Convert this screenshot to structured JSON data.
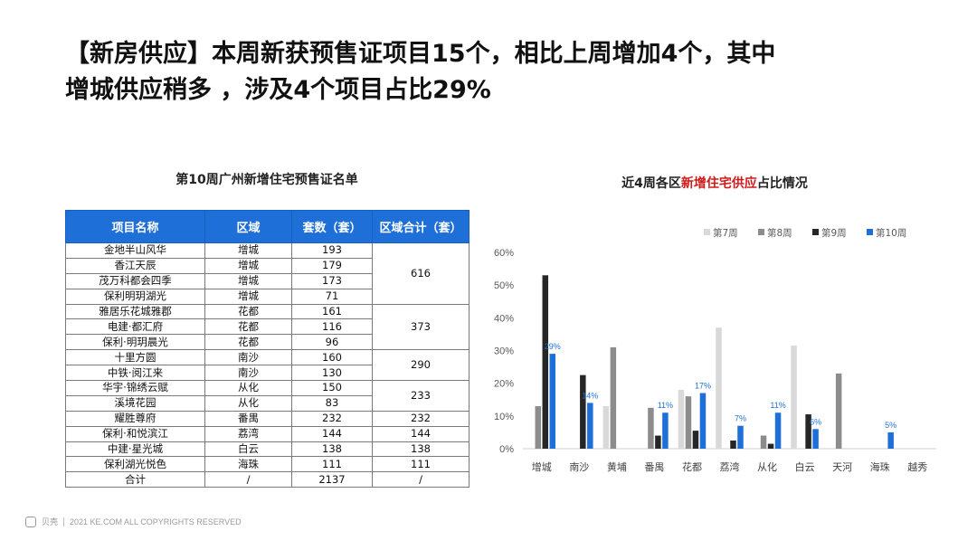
{
  "headline": {
    "line1": "【新房供应】本周新获预售证项目15个，相比上周增加4个，其中",
    "line2": "增城供应稍多 ，涉及4个项目占比29%"
  },
  "table": {
    "title": "第10周广州新增住宅预售证名单",
    "headers": [
      "项目名称",
      "区域",
      "套数（套）",
      "区域合计（套）"
    ],
    "rows": [
      {
        "name": "金地半山风华",
        "district": "增城",
        "units": "193"
      },
      {
        "name": "香江天辰",
        "district": "增城",
        "units": "179"
      },
      {
        "name": "茂万科都会四季",
        "district": "增城",
        "units": "173"
      },
      {
        "name": "保利明玥湖光",
        "district": "增城",
        "units": "71"
      },
      {
        "name": "雅居乐花城雅郡",
        "district": "花都",
        "units": "161"
      },
      {
        "name": "电建·都汇府",
        "district": "花都",
        "units": "116"
      },
      {
        "name": "保利·明玥晨光",
        "district": "花都",
        "units": "96"
      },
      {
        "name": "十里方圆",
        "district": "南沙",
        "units": "160"
      },
      {
        "name": "中铁·阅江来",
        "district": "南沙",
        "units": "130"
      },
      {
        "name": "华宇·锦绣云赋",
        "district": "从化",
        "units": "150"
      },
      {
        "name": "溪境花园",
        "district": "从化",
        "units": "83"
      },
      {
        "name": "耀胜尊府",
        "district": "番禺",
        "units": "232"
      },
      {
        "name": "保利·和悦滨江",
        "district": "荔湾",
        "units": "144"
      },
      {
        "name": "中建·星光城",
        "district": "白云",
        "units": "138"
      },
      {
        "name": "保利湖光悦色",
        "district": "海珠",
        "units": "111"
      },
      {
        "name": "合计",
        "district": "/",
        "units": "2137"
      }
    ],
    "totals": [
      {
        "value": "616",
        "span": 4
      },
      {
        "value": "373",
        "span": 3
      },
      {
        "value": "290",
        "span": 2
      },
      {
        "value": "233",
        "span": 2
      },
      {
        "value": "232",
        "span": 1
      },
      {
        "value": "144",
        "span": 1
      },
      {
        "value": "138",
        "span": 1
      },
      {
        "value": "111",
        "span": 1
      },
      {
        "value": "/",
        "span": 1
      }
    ]
  },
  "chart_title": {
    "prefix": "近4周各区",
    "highlight": "新增住宅供应",
    "suffix": "占比情况"
  },
  "chart_data": {
    "type": "bar",
    "categories": [
      "增城",
      "南沙",
      "黄埔",
      "番禺",
      "花都",
      "荔湾",
      "从化",
      "白云",
      "天河",
      "海珠",
      "越秀"
    ],
    "series": [
      {
        "name": "第7周",
        "color": "#d9d9d9",
        "values": [
          0,
          0,
          13,
          0,
          18,
          37,
          0,
          31.5,
          0,
          0,
          0
        ]
      },
      {
        "name": "第8周",
        "color": "#8c8c8c",
        "values": [
          13,
          0,
          31,
          12.5,
          16,
          0,
          4,
          0,
          23,
          0,
          0
        ]
      },
      {
        "name": "第9周",
        "color": "#262626",
        "values": [
          53,
          22.5,
          0,
          4,
          5.5,
          2.5,
          1.5,
          10.5,
          0,
          0,
          0
        ]
      },
      {
        "name": "第10周",
        "color": "#1f6fd9",
        "values": [
          29,
          14,
          0,
          11,
          17,
          7,
          11,
          6,
          0,
          5,
          0
        ]
      }
    ],
    "data_labels": [
      {
        "series": 3,
        "index": 0,
        "text": "29%"
      },
      {
        "series": 3,
        "index": 1,
        "text": "14%"
      },
      {
        "series": 3,
        "index": 3,
        "text": "11%"
      },
      {
        "series": 3,
        "index": 4,
        "text": "17%"
      },
      {
        "series": 3,
        "index": 5,
        "text": "7%"
      },
      {
        "series": 3,
        "index": 6,
        "text": "11%"
      },
      {
        "series": 3,
        "index": 7,
        "text": "6%"
      },
      {
        "series": 3,
        "index": 9,
        "text": "5%"
      }
    ],
    "ylim": [
      0,
      60
    ],
    "yticks": [
      0,
      10,
      20,
      30,
      40,
      50,
      60
    ],
    "ytick_labels": [
      "0%",
      "10%",
      "20%",
      "30%",
      "40%",
      "50%",
      "60%"
    ],
    "legend_position": "top-right",
    "grid": false
  },
  "footer": {
    "brand": "贝壳",
    "copyright": "2021 KE.COM ALL COPYRIGHTS  RESERVED"
  }
}
